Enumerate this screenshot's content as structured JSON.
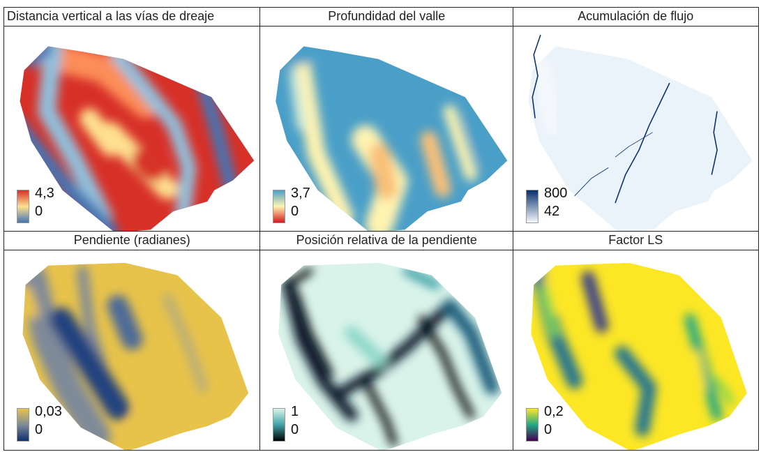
{
  "panels": [
    {
      "title": "Distancia vertical a las vías de dreaje",
      "legend_max": "4,3",
      "legend_min": "0",
      "colors": [
        "#d73027",
        "#fc8d59",
        "#fee090",
        "#e0f3f8",
        "#91bfdb",
        "#4575b4"
      ]
    },
    {
      "title": "Profundidad del valle",
      "legend_max": "3,7",
      "legend_min": "0",
      "colors": [
        "#4a9fc8",
        "#d9ecd4",
        "#fff3b0",
        "#f9c078",
        "#e34a33",
        "#d7191c"
      ]
    },
    {
      "title": "Acumulación de flujo",
      "legend_max": "800",
      "legend_min": "42",
      "colors": [
        "#08306b",
        "#2171b5",
        "#6baed6",
        "#c6dbef",
        "#eaf2fa",
        "#f4f8fc"
      ]
    },
    {
      "title": "Pendiente (radianes)",
      "legend_max": "0,03",
      "legend_min": "0",
      "colors": [
        "#e8c34a",
        "#b8ad7a",
        "#7f8a99",
        "#4d6a98",
        "#23437f",
        "#10306e"
      ]
    },
    {
      "title": "Posición relativa de la pendiente",
      "legend_max": "1",
      "legend_min": "0",
      "colors": [
        "#d9f3ea",
        "#8fd8c8",
        "#3fa3a8",
        "#1d5f7d",
        "#111a2e",
        "#000000"
      ]
    },
    {
      "title": "Factor LS",
      "legend_max": "0,2",
      "legend_min": "0",
      "colors": [
        "#fde725",
        "#7ad151",
        "#22a884",
        "#2a788e",
        "#414487",
        "#440154"
      ]
    }
  ]
}
